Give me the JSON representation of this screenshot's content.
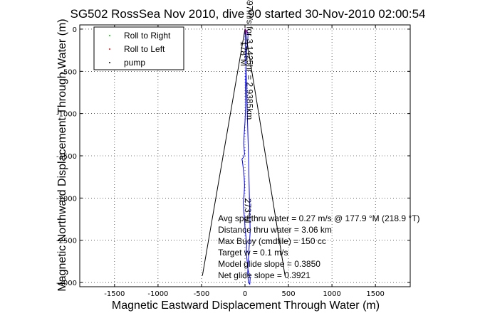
{
  "chart_data": {
    "type": "line",
    "title": "SG502 RossSea Nov 2010, dive 90 started 30-Nov-2010 02:00:54",
    "xlabel": "Magnetic Eastward Displacement Through Water (m)",
    "ylabel": "Magnetic Northward Displacement Through Water (m)",
    "xlim": [
      -1900,
      1900
    ],
    "ylim": [
      -3050,
      50
    ],
    "xticks": [
      -1500,
      -1000,
      -500,
      0,
      500,
      1000,
      1500
    ],
    "yticks": [
      0,
      -500,
      -1000,
      -1500,
      -2000,
      -2500,
      -3000
    ],
    "grid": true,
    "legend_position": "top-left",
    "legend": [
      {
        "label": "Roll to Right",
        "color": "#00c000",
        "marker": "point"
      },
      {
        "label": "Roll to Left",
        "color": "#ff0000",
        "marker": "point"
      },
      {
        "label": "pump",
        "color": "#000000",
        "marker": "point"
      }
    ],
    "series": [
      {
        "color": "#0000ff",
        "x": [
          0,
          20,
          35,
          30,
          15,
          10,
          5,
          8,
          0,
          -10,
          -15,
          -10,
          -5,
          -20,
          -35,
          -30,
          -20,
          -10,
          -5,
          -10,
          -20,
          -15,
          -5,
          0,
          10,
          20,
          15,
          25,
          35,
          60,
          55,
          40,
          30,
          40,
          60,
          40,
          0
        ],
        "y": [
          0,
          -20,
          -60,
          -150,
          -300,
          -500,
          -700,
          -900,
          -1100,
          -1250,
          -1350,
          -1420,
          -1480,
          -1520,
          -1540,
          -1560,
          -1650,
          -1750,
          -1850,
          -1950,
          -2050,
          -2150,
          -2250,
          -2350,
          -2450,
          -2550,
          -2650,
          -2750,
          -2850,
          -2950,
          -3020,
          -3000,
          -2900,
          -2700,
          -2400,
          -1500,
          0
        ]
      },
      {
        "color": "#ff00ff",
        "x": [
          0,
          10,
          20,
          10,
          0
        ],
        "y": [
          0,
          -10,
          -40,
          -60,
          0
        ]
      },
      {
        "color": "#000000",
        "x": [
          -490,
          0,
          460
        ],
        "y": [
          -2920,
          0,
          -2920
        ]
      }
    ],
    "annotations": [
      {
        "text": "Avg spd thru water =  0.27 m/s @ 177.9   °M (218.9 °T)",
        "x": -310,
        "y": -2275
      },
      {
        "text": "Distance thru water =  3.06 km",
        "x": -310,
        "y": -2410
      },
      {
        "text": "Max Buoy (cmdfile) = 150 cc",
        "x": -310,
        "y": -2545
      },
      {
        "text": "Target w = 0.1 m/s",
        "x": -310,
        "y": -2680
      },
      {
        "text": "Model glide slope = 0.3850",
        "x": -310,
        "y": -2815
      },
      {
        "text": "Net glide slope = 0.3921",
        "x": -310,
        "y": -2950
      }
    ],
    "rotated_labels": [
      {
        "text": "0.2597m/s for 3.1425hr = 2.9385km",
        "x": 20,
        "y": -270
      },
      {
        "text": "178°M",
        "x": -50,
        "y": -290
      },
      {
        "text": "273°M",
        "x": 0,
        "y": -2150
      }
    ]
  }
}
